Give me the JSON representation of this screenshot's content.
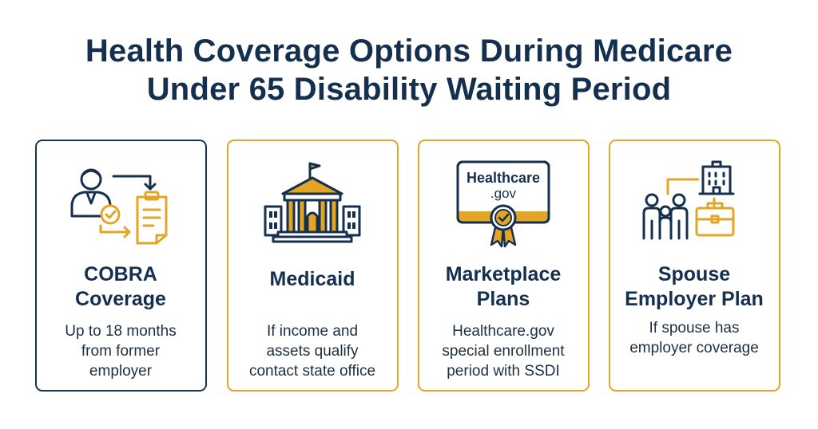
{
  "header": {
    "title_line1": "Health Coverage Options During Medicare",
    "title_line2": "Under 65 Disability Waiting Period"
  },
  "colors": {
    "navy": "#15304f",
    "gold": "#e2a526"
  },
  "cards": [
    {
      "icon": "person-document-transfer-icon",
      "title_line1": "COBRA",
      "title_line2": "Coverage",
      "desc_line1": "Up to 18 months",
      "desc_line2": "from former",
      "desc_line3": "employer"
    },
    {
      "icon": "government-building-icon",
      "title_line1": "Medicaid",
      "desc_line1": "If income and",
      "desc_line2": "assets qualify",
      "desc_line3": "contact state office"
    },
    {
      "icon": "healthcare-gov-certificate-icon",
      "icon_text_line1": "Healthcare",
      "icon_text_line2": ".gov",
      "title_line1": "Marketplace",
      "title_line2": "Plans",
      "desc_line1": "Healthcare.gov",
      "desc_line2": "special enrollment",
      "desc_line3": "period with SSDI"
    },
    {
      "icon": "family-employer-icon",
      "title_line1": "Spouse",
      "title_line2": "Employer Plan",
      "desc_line1": "If spouse has",
      "desc_line2": "employer coverage"
    }
  ]
}
